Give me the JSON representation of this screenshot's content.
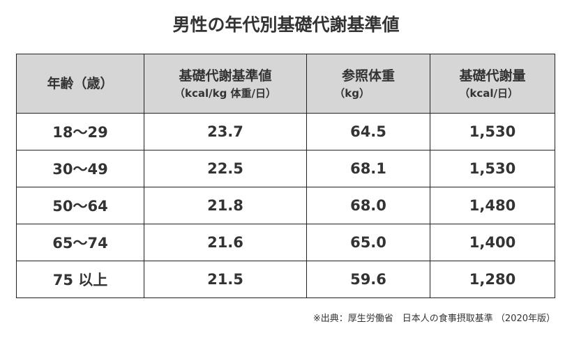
{
  "title": "男性の年代別基礎代謝基準値",
  "table": {
    "headers": [
      {
        "label": "年齢（歳）",
        "unit": ""
      },
      {
        "label": "基礎代謝基準値",
        "unit": "（kcal/kg 体重/日）"
      },
      {
        "label": "参照体重",
        "unit": "（kg）"
      },
      {
        "label": "基礎代謝量",
        "unit": "（kcal/日）"
      }
    ],
    "rows": [
      {
        "age": "18〜29",
        "bmr_standard": "23.7",
        "ref_weight": "64.5",
        "bmr": "1,530"
      },
      {
        "age": "30〜49",
        "bmr_standard": "22.5",
        "ref_weight": "68.1",
        "bmr": "1,530"
      },
      {
        "age": "50〜64",
        "bmr_standard": "21.8",
        "ref_weight": "68.0",
        "bmr": "1,480"
      },
      {
        "age": "65〜74",
        "bmr_standard": "21.6",
        "ref_weight": "65.0",
        "bmr": "1,400"
      },
      {
        "age": "75 以上",
        "bmr_standard": "21.5",
        "ref_weight": "59.6",
        "bmr": "1,280"
      }
    ]
  },
  "source": "※出典：厚生労働省　日本人の食事摂取基準 （2020年版）"
}
